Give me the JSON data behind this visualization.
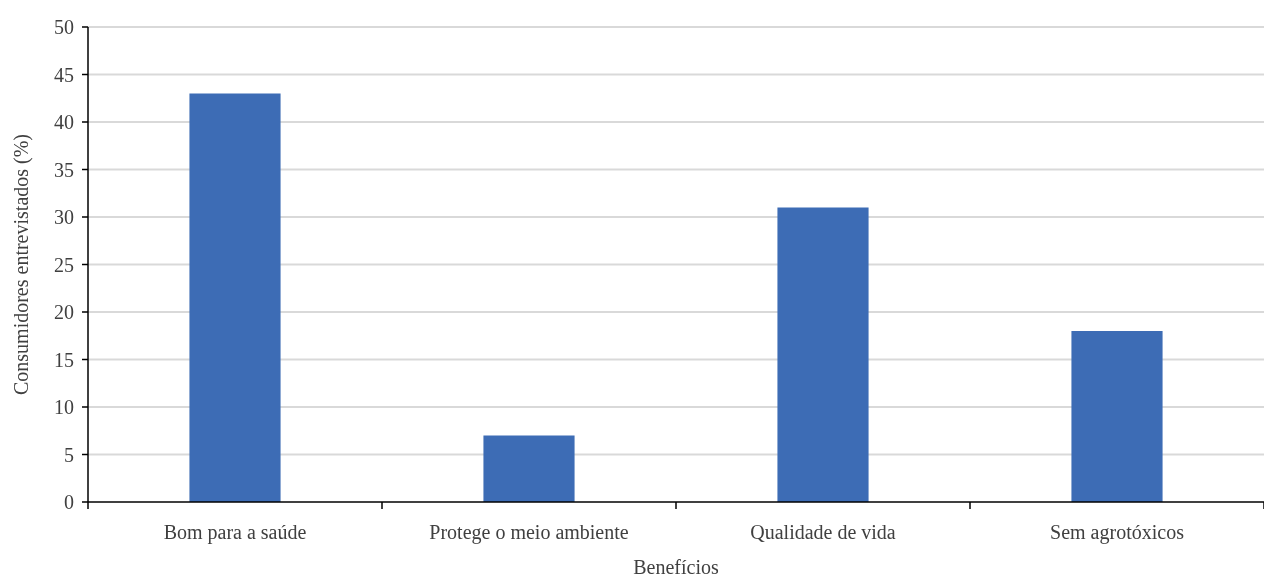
{
  "chart_data": {
    "type": "bar",
    "xlabel": "Benefícios",
    "ylabel": "Consumidores entrevistados (%)",
    "categories": [
      "Bom para a saúde",
      "Protege o meio ambiente",
      "Qualidade de vida",
      "Sem agrotóxicos"
    ],
    "values": [
      43,
      7,
      31,
      18
    ],
    "color": "#3d6cb5",
    "ylim": [
      0,
      50
    ],
    "yticks": [
      0,
      5,
      10,
      15,
      20,
      25,
      30,
      35,
      40,
      45,
      50
    ],
    "grid": "y"
  }
}
